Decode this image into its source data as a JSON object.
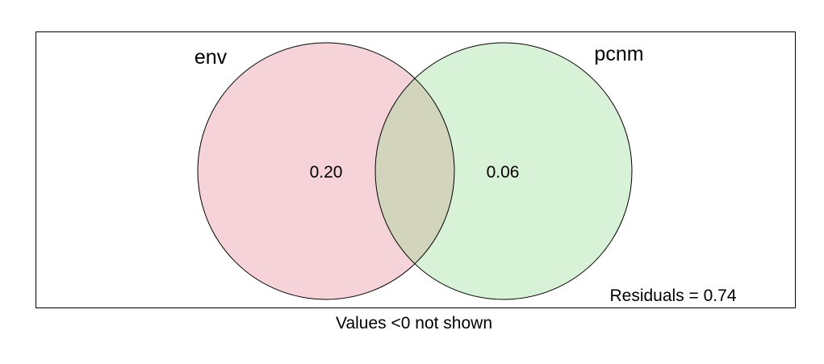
{
  "sets": [
    {
      "label": "env",
      "value": "0.20",
      "color": "#f5d3d9"
    },
    {
      "label": "pcnm",
      "value": "0.06",
      "color": "#d8f2d7"
    }
  ],
  "overlap_color": "#d2d5bc",
  "residuals": "Residuals = 0.74",
  "footnote": "Values <0 not shown"
}
